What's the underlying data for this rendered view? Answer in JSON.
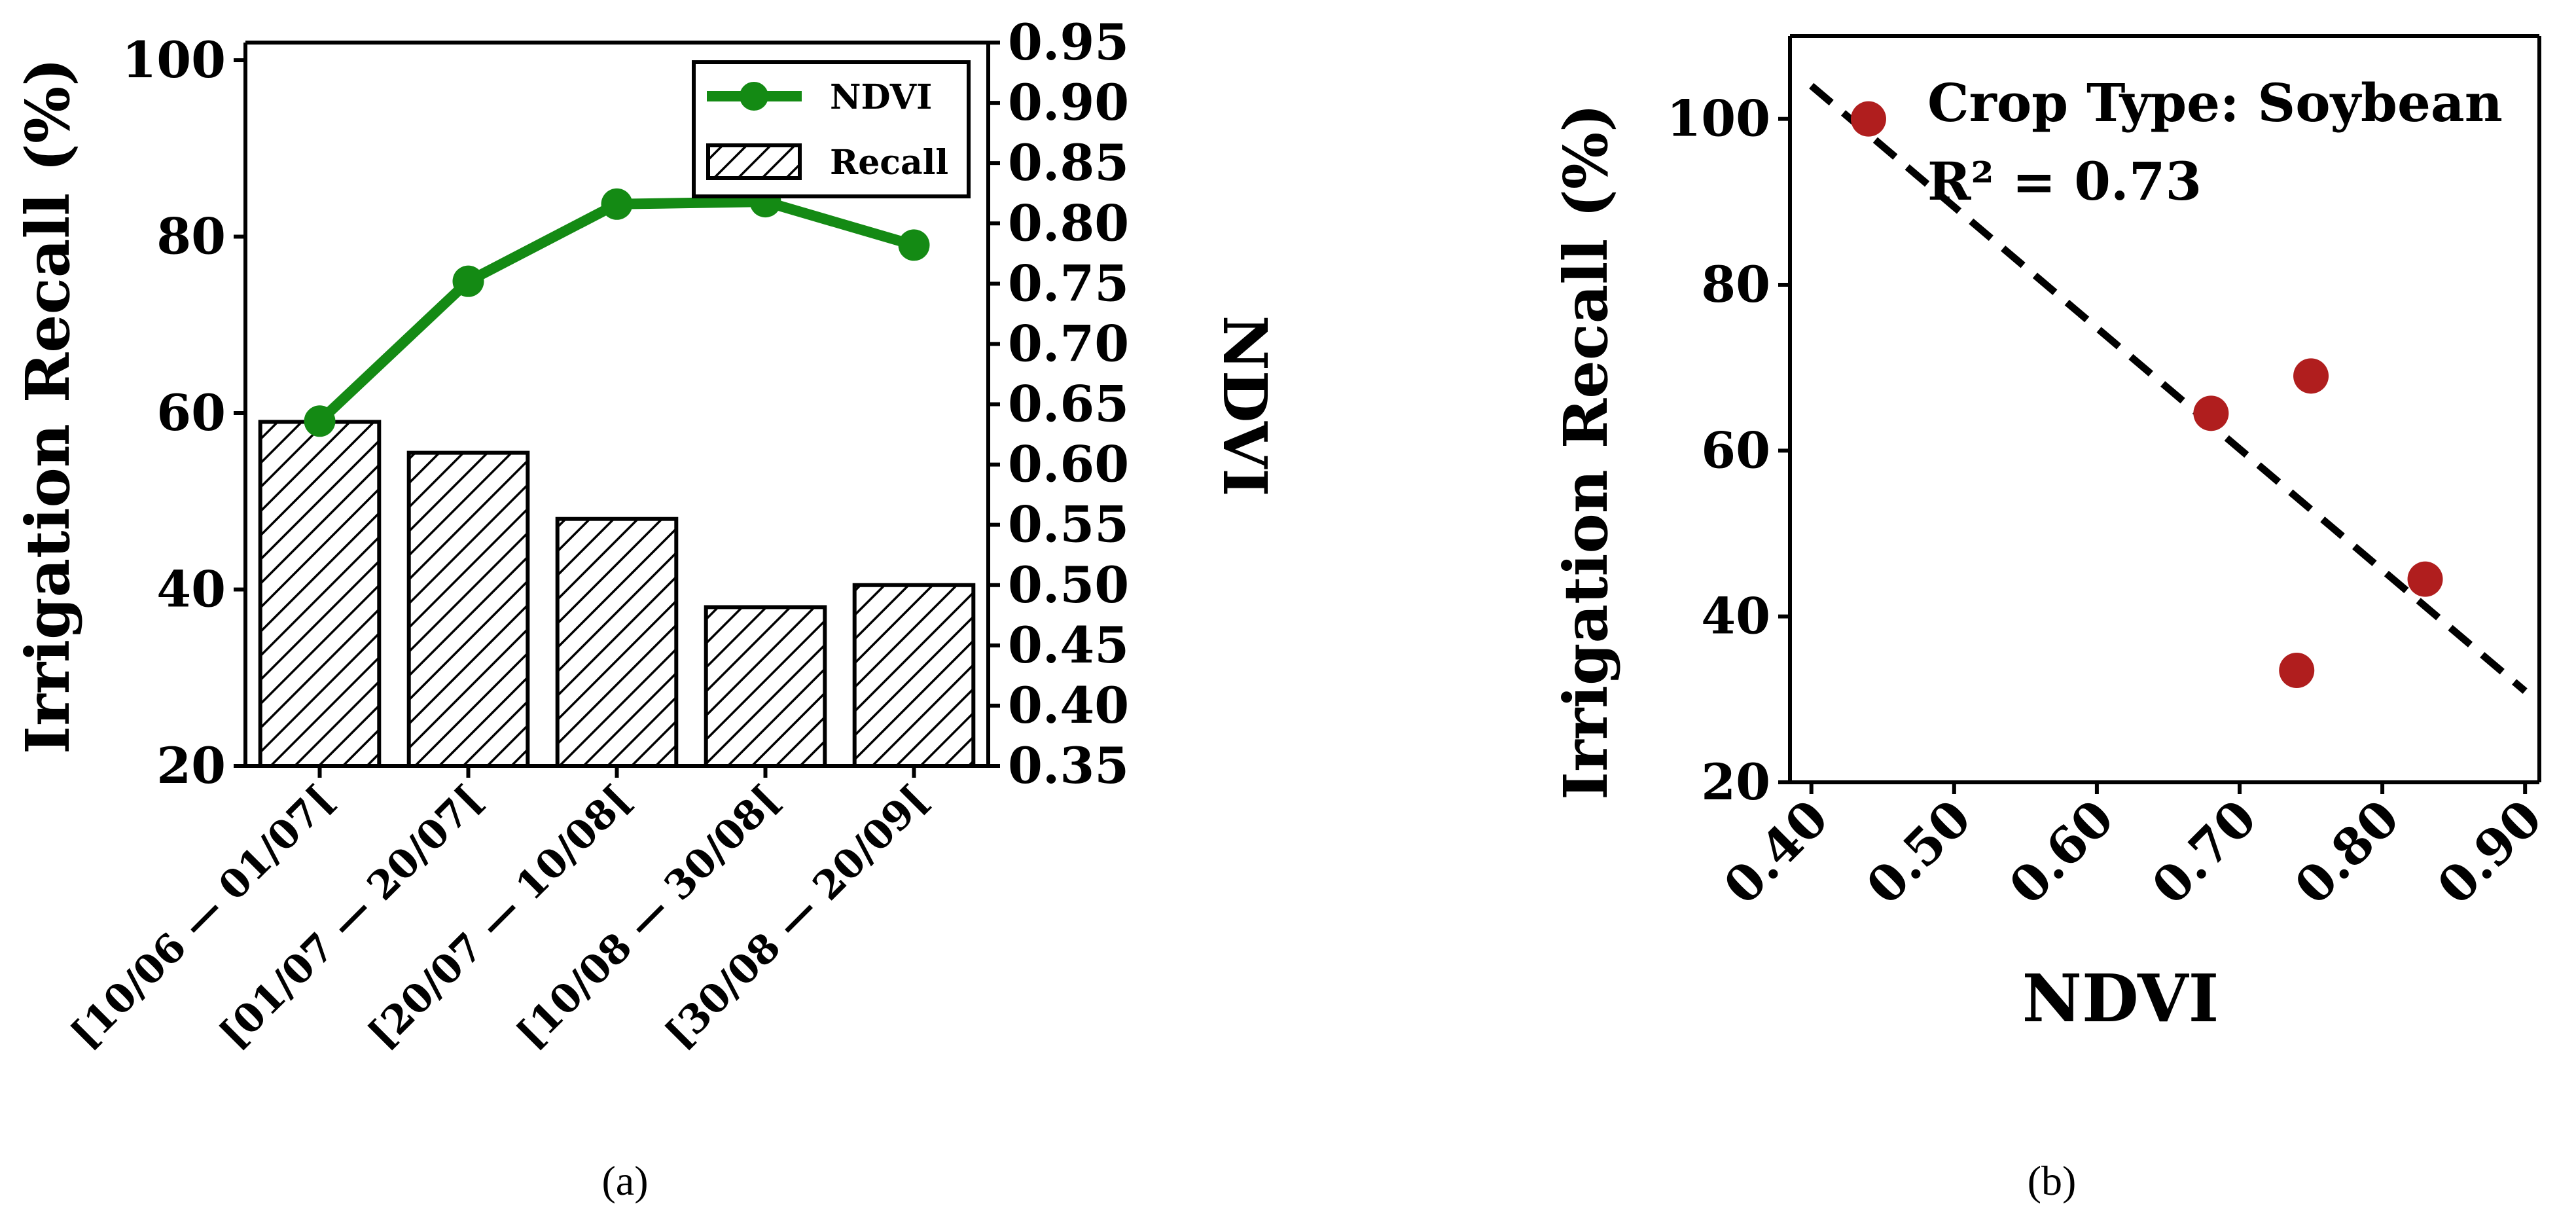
{
  "colors": {
    "ndvi_line": "#148a14",
    "scatter_point": "#b01e1e",
    "axis": "#000000",
    "bar_edge": "#000000"
  },
  "chart_data": [
    {
      "panel": "(a)",
      "type": "bar",
      "categories": [
        "[10/06 — 01/07[",
        "[01/07 — 20/07[",
        "[20/07 — 10/08[",
        "[10/08 — 30/08[",
        "[30/08 — 20/09["
      ],
      "series": [
        {
          "name": "Recall",
          "axis": "left",
          "type": "bar",
          "hatch": "diagonal",
          "values": [
            59,
            55.5,
            48,
            38,
            40.5
          ]
        },
        {
          "name": "NDVI",
          "axis": "right",
          "type": "line",
          "marker": "circle",
          "values": [
            0.636,
            0.752,
            0.816,
            0.818,
            0.782
          ]
        }
      ],
      "ylabel": "Irrigation Recall (%)",
      "ylabel_right": "NDVI",
      "ylim": [
        20,
        102
      ],
      "yticks": [
        "20",
        "40",
        "60",
        "80",
        "100"
      ],
      "ylim_right": [
        0.35,
        0.95
      ],
      "yticks_right": [
        "0.35",
        "0.40",
        "0.45",
        "0.50",
        "0.55",
        "0.60",
        "0.65",
        "0.70",
        "0.75",
        "0.80",
        "0.85",
        "0.90",
        "0.95"
      ],
      "legend": [
        "NDVI",
        "Recall"
      ],
      "legend_position": "top-right",
      "caption": "(a)"
    },
    {
      "panel": "(b)",
      "type": "scatter",
      "x": [
        0.44,
        0.68,
        0.75,
        0.74,
        0.83
      ],
      "y": [
        100,
        64.5,
        69,
        33.5,
        44.5
      ],
      "fit_line": {
        "x": [
          0.4,
          0.9
        ],
        "y": [
          104,
          31
        ],
        "style": "dashed"
      },
      "xlabel": "NDVI",
      "ylabel": "Irrigation Recall (%)",
      "xlim": [
        0.385,
        0.91
      ],
      "ylim": [
        20,
        110
      ],
      "xticks": [
        "0.40",
        "0.50",
        "0.60",
        "0.70",
        "0.80",
        "0.90"
      ],
      "yticks": [
        "20",
        "40",
        "60",
        "80",
        "100"
      ],
      "annotation_title": "Crop Type: Soybean",
      "annotation_r2": "R² = 0.73",
      "caption": "(b)"
    }
  ]
}
